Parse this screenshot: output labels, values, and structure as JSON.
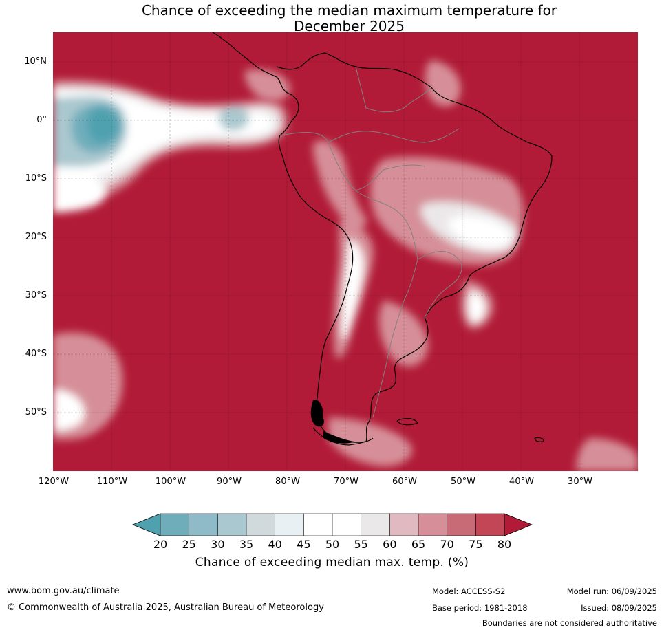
{
  "title": {
    "line1": "Chance of exceeding the median maximum temperature for",
    "line2": "December 2025"
  },
  "map": {
    "region": "South America",
    "lat_ticks": [
      "10°N",
      "0°",
      "10°S",
      "20°S",
      "30°S",
      "40°S",
      "50°S"
    ],
    "lon_ticks": [
      "120°W",
      "110°W",
      "100°W",
      "90°W",
      "80°W",
      "70°W",
      "60°W",
      "50°W",
      "40°W",
      "30°W"
    ],
    "background_color": "#b11b37"
  },
  "colorbar": {
    "levels": [
      "20",
      "25",
      "30",
      "35",
      "40",
      "45",
      "50",
      "55",
      "60",
      "65",
      "70",
      "75",
      "80"
    ],
    "colors": [
      "#4fa1b0",
      "#6fadbb",
      "#8ebbc7",
      "#aac8cf",
      "#d0dadd",
      "#e9f0f3",
      "#ffffff",
      "#ffffff",
      "#ebe8ea",
      "#e1b9c0",
      "#d68f98",
      "#c96b77",
      "#c24656",
      "#b11b37"
    ],
    "label": "Chance of exceeding median max. temp. (%)"
  },
  "footer": {
    "url": "www.bom.gov.au/climate",
    "copyright": "© Commonwealth of Australia 2025, Australian Bureau of Meteorology",
    "model": "Model: ACCESS-S2",
    "base_period": "Base period: 1981-2018",
    "model_run": "Model run: 06/09/2025",
    "issued": "Issued: 08/09/2025",
    "disclaimer": "Boundaries are not considered authoritative"
  }
}
